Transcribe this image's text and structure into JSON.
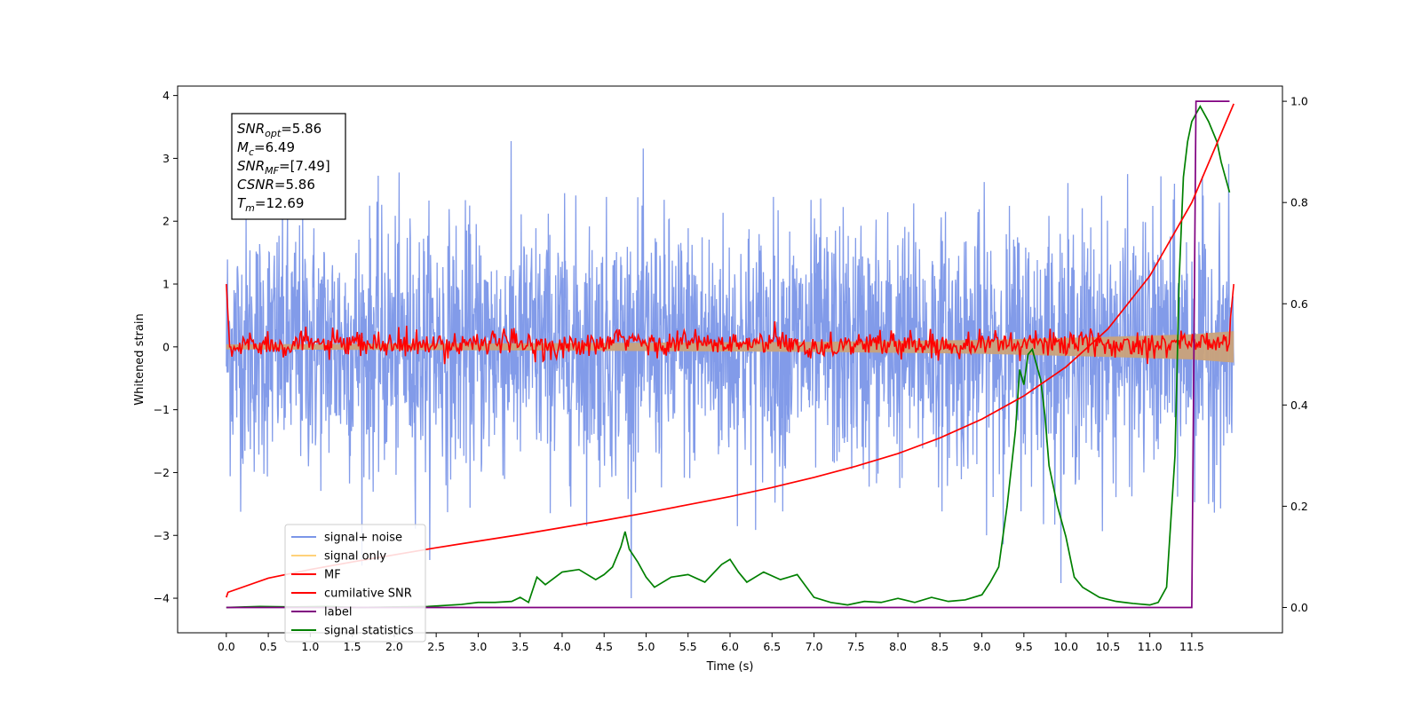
{
  "chart_data": {
    "type": "line",
    "xlabel": "Time (s)",
    "ylabel": "Whitened strain",
    "xlim": [
      -0.58,
      12.58
    ],
    "ylim_left": [
      -4.55,
      4.15
    ],
    "ylim_right": [
      -0.05,
      1.03
    ],
    "x_ticks": [
      "0.0",
      "0.5",
      "1.0",
      "1.5",
      "2.0",
      "2.5",
      "3.0",
      "3.5",
      "4.0",
      "4.5",
      "5.0",
      "5.5",
      "6.0",
      "6.5",
      "7.0",
      "7.5",
      "8.0",
      "8.5",
      "9.0",
      "9.5",
      "10.0",
      "10.5",
      "11.0",
      "11.5"
    ],
    "y_ticks_left": [
      "4",
      "3",
      "2",
      "1",
      "0",
      "−1",
      "−2",
      "−3",
      "−4"
    ],
    "y_ticks_right": [
      "0.0",
      "0.2",
      "0.4",
      "0.6",
      "0.8",
      "1.0"
    ],
    "annotations": [
      {
        "main": "SNR",
        "sub": "opt",
        "rest": "=5.86"
      },
      {
        "main": "M",
        "sub": "c",
        "rest": "=6.49"
      },
      {
        "main": "SNR",
        "sub": "MF",
        "rest": "=[7.49]"
      },
      {
        "main": "CSNR",
        "sub": "",
        "rest": "=5.86"
      },
      {
        "main": "T",
        "sub": "m",
        "rest": "=12.69"
      }
    ],
    "legend": {
      "placement": "lower-left",
      "entries": [
        {
          "label": "signal+ noise",
          "color": "#7b96e8"
        },
        {
          "label": "signal only",
          "color": "#ffd27a"
        },
        {
          "label": "MF",
          "color": "#ff0000"
        },
        {
          "label": "cumilative SNR",
          "color": "#ff0000"
        },
        {
          "label": "label",
          "color": "#800080"
        },
        {
          "label": "signal statistics",
          "color": "#008000"
        }
      ]
    },
    "series": [
      {
        "name": "signal+ noise",
        "axis": "left",
        "color": "#7b96e8",
        "description_stats": {
          "t_start": 0.0,
          "t_end": 12.0,
          "sigma": 1.0,
          "min": -4.0,
          "max": 3.8
        }
      },
      {
        "name": "signal only",
        "axis": "left",
        "color": "#ffd27a",
        "envelope": {
          "x": [
            0.0,
            4.0,
            7.0,
            9.0,
            10.5,
            11.5,
            12.0
          ],
          "amp": [
            0.04,
            0.06,
            0.08,
            0.11,
            0.16,
            0.2,
            0.25
          ]
        }
      },
      {
        "name": "MF",
        "axis": "left",
        "color": "#ff0000",
        "x": [
          0.0,
          0.05,
          0.25,
          0.5,
          1.0,
          1.5,
          2.0,
          2.5,
          3.0,
          3.5,
          4.0,
          4.5,
          4.75,
          5.0,
          5.5,
          6.0,
          6.5,
          7.0,
          7.5,
          8.0,
          8.5,
          9.0,
          9.5,
          10.0,
          10.5,
          11.0,
          11.5,
          11.9,
          11.95,
          12.0
        ],
        "y": [
          1.0,
          -0.25,
          0.2,
          0.1,
          0.15,
          0.05,
          0.1,
          0.0,
          0.25,
          0.1,
          0.0,
          0.05,
          0.35,
          0.1,
          0.2,
          0.05,
          0.2,
          0.0,
          0.1,
          0.15,
          0.05,
          0.2,
          0.1,
          0.2,
          0.05,
          0.15,
          0.2,
          0.1,
          0.3,
          1.0
        ]
      },
      {
        "name": "cumilative SNR",
        "axis": "right",
        "color": "#ff0000",
        "x": [
          0.0,
          0.02,
          0.5,
          1.0,
          1.5,
          2.0,
          2.5,
          3.0,
          3.5,
          4.0,
          4.5,
          5.0,
          5.5,
          6.0,
          6.5,
          7.0,
          7.5,
          8.0,
          8.5,
          9.0,
          9.5,
          10.0,
          10.5,
          11.0,
          11.5,
          12.0
        ],
        "y": [
          0.02,
          0.03,
          0.058,
          0.075,
          0.09,
          0.104,
          0.118,
          0.131,
          0.144,
          0.158,
          0.172,
          0.187,
          0.203,
          0.219,
          0.237,
          0.257,
          0.279,
          0.304,
          0.335,
          0.372,
          0.418,
          0.475,
          0.55,
          0.655,
          0.8,
          0.995
        ]
      },
      {
        "name": "label",
        "axis": "right",
        "color": "#800080",
        "x": [
          0.0,
          11.5,
          11.55,
          11.95
        ],
        "y": [
          0.0,
          0.0,
          1.0,
          1.0
        ]
      },
      {
        "name": "signal statistics",
        "axis": "right",
        "color": "#008000",
        "x": [
          0.0,
          0.4,
          0.8,
          1.2,
          1.6,
          2.0,
          2.4,
          2.8,
          3.0,
          3.2,
          3.4,
          3.5,
          3.6,
          3.7,
          3.8,
          4.0,
          4.2,
          4.4,
          4.5,
          4.6,
          4.7,
          4.75,
          4.8,
          4.9,
          5.0,
          5.1,
          5.3,
          5.5,
          5.7,
          5.9,
          6.0,
          6.1,
          6.2,
          6.4,
          6.6,
          6.8,
          7.0,
          7.2,
          7.4,
          7.6,
          7.8,
          8.0,
          8.2,
          8.4,
          8.6,
          8.8,
          9.0,
          9.1,
          9.2,
          9.3,
          9.4,
          9.45,
          9.5,
          9.55,
          9.6,
          9.7,
          9.75,
          9.8,
          9.9,
          10.0,
          10.1,
          10.2,
          10.4,
          10.6,
          10.8,
          11.0,
          11.1,
          11.2,
          11.3,
          11.35,
          11.4,
          11.45,
          11.5,
          11.6,
          11.7,
          11.8,
          11.85,
          11.9,
          11.95
        ],
        "y": [
          0.0,
          0.002,
          0.001,
          0.002,
          0.0,
          0.001,
          0.002,
          0.006,
          0.01,
          0.01,
          0.012,
          0.02,
          0.01,
          0.06,
          0.045,
          0.07,
          0.075,
          0.055,
          0.065,
          0.08,
          0.12,
          0.15,
          0.115,
          0.09,
          0.06,
          0.04,
          0.06,
          0.065,
          0.05,
          0.085,
          0.095,
          0.07,
          0.05,
          0.07,
          0.055,
          0.065,
          0.02,
          0.01,
          0.005,
          0.012,
          0.01,
          0.018,
          0.01,
          0.02,
          0.012,
          0.015,
          0.025,
          0.05,
          0.08,
          0.2,
          0.35,
          0.47,
          0.44,
          0.5,
          0.51,
          0.45,
          0.38,
          0.28,
          0.2,
          0.14,
          0.06,
          0.04,
          0.02,
          0.012,
          0.008,
          0.005,
          0.01,
          0.04,
          0.3,
          0.65,
          0.85,
          0.92,
          0.96,
          0.99,
          0.96,
          0.92,
          0.88,
          0.85,
          0.82
        ]
      }
    ]
  }
}
